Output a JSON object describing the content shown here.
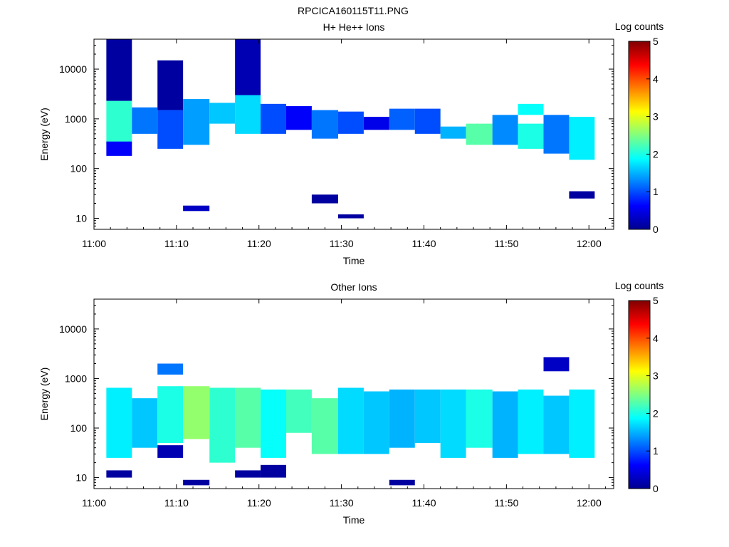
{
  "page_title": "RPCICA160115T11.PNG",
  "colormap": [
    "#00008f",
    "#0000ff",
    "#0080ff",
    "#00ffff",
    "#80ff80",
    "#ffff00",
    "#ff8000",
    "#ff0000",
    "#800000"
  ],
  "chart_data": [
    {
      "type": "heatmap",
      "title": "H+ He++ Ions",
      "xlabel": "Time",
      "ylabel": "Energy (eV)",
      "xlim": [
        "11:00",
        "12:03"
      ],
      "xticks": [
        "11:00",
        "11:10",
        "11:20",
        "11:30",
        "11:40",
        "11:50",
        "12:00"
      ],
      "ylim": [
        6,
        40000
      ],
      "yscale": "log",
      "yticks": [
        "10",
        "100",
        "1000",
        "10000"
      ],
      "colorbar": {
        "label": "Log counts",
        "range": [
          0,
          5
        ],
        "ticks": [
          "0",
          "1",
          "2",
          "3",
          "4",
          "5"
        ]
      },
      "cells": [
        {
          "t": [
            1.5,
            4.6
          ],
          "e": [
            300,
            2300
          ],
          "v": 2.1
        },
        {
          "t": [
            1.5,
            4.6
          ],
          "e": [
            180,
            350
          ],
          "v": 0.6
        },
        {
          "t": [
            1.5,
            4.6
          ],
          "e": [
            2300,
            40000
          ],
          "v": 0.1
        },
        {
          "t": [
            4.6,
            7.7
          ],
          "e": [
            500,
            1700
          ],
          "v": 1.2
        },
        {
          "t": [
            7.7,
            10.8
          ],
          "e": [
            250,
            1500
          ],
          "v": 1.0
        },
        {
          "t": [
            7.7,
            10.8
          ],
          "e": [
            1500,
            15000
          ],
          "v": 0.1
        },
        {
          "t": [
            10.8,
            14.0
          ],
          "e": [
            300,
            2500
          ],
          "v": 1.4
        },
        {
          "t": [
            10.8,
            14.0
          ],
          "e": [
            14,
            18
          ],
          "v": 0.3
        },
        {
          "t": [
            14.0,
            17.1
          ],
          "e": [
            800,
            2100
          ],
          "v": 1.6
        },
        {
          "t": [
            17.1,
            20.2
          ],
          "e": [
            500,
            3000
          ],
          "v": 1.7
        },
        {
          "t": [
            17.1,
            20.2
          ],
          "e": [
            3000,
            40000
          ],
          "v": 0.2
        },
        {
          "t": [
            20.2,
            23.3
          ],
          "e": [
            500,
            2000
          ],
          "v": 1.0
        },
        {
          "t": [
            23.3,
            26.4
          ],
          "e": [
            600,
            1800
          ],
          "v": 0.6
        },
        {
          "t": [
            26.4,
            29.6
          ],
          "e": [
            400,
            1500
          ],
          "v": 1.2
        },
        {
          "t": [
            26.4,
            29.6
          ],
          "e": [
            20,
            30
          ],
          "v": 0.1
        },
        {
          "t": [
            29.6,
            32.7
          ],
          "e": [
            500,
            1400
          ],
          "v": 1.0
        },
        {
          "t": [
            29.6,
            32.7
          ],
          "e": [
            10,
            12
          ],
          "v": 0.1
        },
        {
          "t": [
            32.7,
            35.8
          ],
          "e": [
            600,
            1100
          ],
          "v": 0.5
        },
        {
          "t": [
            35.8,
            38.9
          ],
          "e": [
            600,
            1600
          ],
          "v": 1.1
        },
        {
          "t": [
            38.9,
            42.0
          ],
          "e": [
            500,
            1600
          ],
          "v": 1.0
        },
        {
          "t": [
            42.0,
            45.1
          ],
          "e": [
            400,
            700
          ],
          "v": 1.5
        },
        {
          "t": [
            45.1,
            48.3
          ],
          "e": [
            300,
            800
          ],
          "v": 2.3
        },
        {
          "t": [
            48.3,
            51.4
          ],
          "e": [
            300,
            1200
          ],
          "v": 1.3
        },
        {
          "t": [
            51.4,
            54.5
          ],
          "e": [
            250,
            800
          ],
          "v": 2.0
        },
        {
          "t": [
            51.4,
            54.5
          ],
          "e": [
            1200,
            2000
          ],
          "v": 1.9
        },
        {
          "t": [
            54.5,
            57.6
          ],
          "e": [
            200,
            1200
          ],
          "v": 1.2
        },
        {
          "t": [
            57.6,
            60.7
          ],
          "e": [
            150,
            1100
          ],
          "v": 1.8
        },
        {
          "t": [
            57.6,
            60.7
          ],
          "e": [
            25,
            35
          ],
          "v": 0.1
        }
      ]
    },
    {
      "type": "heatmap",
      "title": "Other Ions",
      "xlabel": "Time",
      "ylabel": "Energy (eV)",
      "xlim": [
        "11:00",
        "12:03"
      ],
      "xticks": [
        "11:00",
        "11:10",
        "11:20",
        "11:30",
        "11:40",
        "11:50",
        "12:00"
      ],
      "ylim": [
        6,
        40000
      ],
      "yscale": "log",
      "yticks": [
        "10",
        "100",
        "1000",
        "10000"
      ],
      "colorbar": {
        "label": "Log counts",
        "range": [
          0,
          5
        ],
        "ticks": [
          "0",
          "1",
          "2",
          "3",
          "4",
          "5"
        ]
      },
      "cells": [
        {
          "t": [
            1.5,
            4.6
          ],
          "e": [
            25,
            650
          ],
          "v": 1.8
        },
        {
          "t": [
            1.5,
            4.6
          ],
          "e": [
            10,
            14
          ],
          "v": 0.1
        },
        {
          "t": [
            4.6,
            7.7
          ],
          "e": [
            40,
            400
          ],
          "v": 1.6
        },
        {
          "t": [
            7.7,
            10.8
          ],
          "e": [
            50,
            700
          ],
          "v": 2.0
        },
        {
          "t": [
            7.7,
            10.8
          ],
          "e": [
            1200,
            2000
          ],
          "v": 1.2
        },
        {
          "t": [
            7.7,
            10.8
          ],
          "e": [
            25,
            45
          ],
          "v": 0.2
        },
        {
          "t": [
            10.8,
            14.0
          ],
          "e": [
            60,
            700
          ],
          "v": 2.6
        },
        {
          "t": [
            10.8,
            14.0
          ],
          "e": [
            7,
            9
          ],
          "v": 0.1
        },
        {
          "t": [
            14.0,
            17.1
          ],
          "e": [
            20,
            650
          ],
          "v": 2.1
        },
        {
          "t": [
            17.1,
            20.2
          ],
          "e": [
            40,
            650
          ],
          "v": 2.3
        },
        {
          "t": [
            17.1,
            20.2
          ],
          "e": [
            10,
            14
          ],
          "v": 0.1
        },
        {
          "t": [
            20.2,
            23.3
          ],
          "e": [
            25,
            600
          ],
          "v": 1.9
        },
        {
          "t": [
            20.2,
            23.3
          ],
          "e": [
            10,
            18
          ],
          "v": 0.1
        },
        {
          "t": [
            23.3,
            26.4
          ],
          "e": [
            80,
            600
          ],
          "v": 2.2
        },
        {
          "t": [
            26.4,
            29.6
          ],
          "e": [
            30,
            400
          ],
          "v": 2.3
        },
        {
          "t": [
            29.6,
            32.7
          ],
          "e": [
            30,
            650
          ],
          "v": 1.7
        },
        {
          "t": [
            32.7,
            35.8
          ],
          "e": [
            30,
            550
          ],
          "v": 1.6
        },
        {
          "t": [
            35.8,
            38.9
          ],
          "e": [
            40,
            600
          ],
          "v": 1.5
        },
        {
          "t": [
            35.8,
            38.9
          ],
          "e": [
            7,
            9
          ],
          "v": 0.1
        },
        {
          "t": [
            38.9,
            42.0
          ],
          "e": [
            50,
            600
          ],
          "v": 1.6
        },
        {
          "t": [
            42.0,
            45.1
          ],
          "e": [
            25,
            600
          ],
          "v": 1.7
        },
        {
          "t": [
            45.1,
            48.3
          ],
          "e": [
            40,
            600
          ],
          "v": 2.0
        },
        {
          "t": [
            48.3,
            51.4
          ],
          "e": [
            25,
            550
          ],
          "v": 1.5
        },
        {
          "t": [
            51.4,
            54.5
          ],
          "e": [
            30,
            600
          ],
          "v": 1.8
        },
        {
          "t": [
            54.5,
            57.6
          ],
          "e": [
            30,
            450
          ],
          "v": 1.6
        },
        {
          "t": [
            54.5,
            57.6
          ],
          "e": [
            1400,
            2700
          ],
          "v": 0.3
        },
        {
          "t": [
            57.6,
            60.7
          ],
          "e": [
            25,
            600
          ],
          "v": 1.8
        }
      ]
    }
  ]
}
